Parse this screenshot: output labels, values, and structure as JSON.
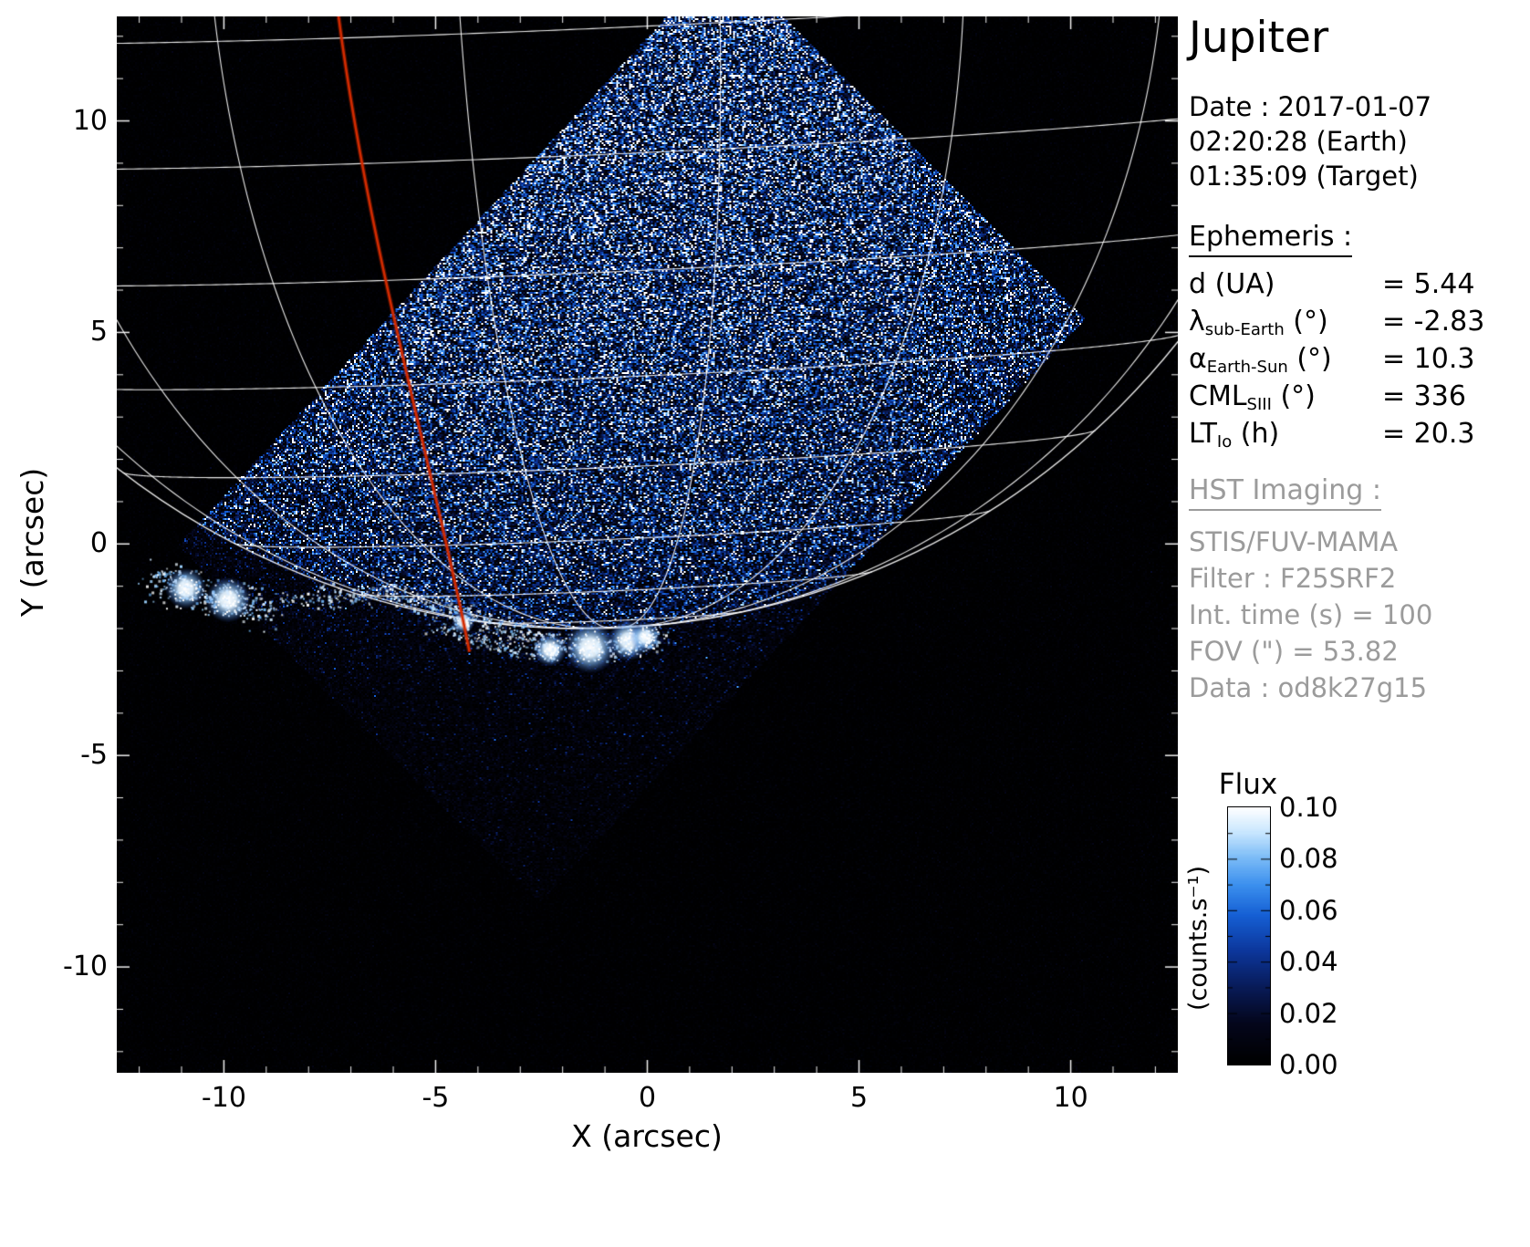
{
  "title": "Jupiter",
  "info_panel": {
    "date_lines": [
      "Date : 2017-01-07",
      "02:20:28 (Earth)",
      "01:35:09 (Target)"
    ],
    "ephemeris": {
      "heading": "Ephemeris :",
      "rows": [
        {
          "pre": "d (UA)",
          "sub": "",
          "post": "",
          "value": "= 5.44"
        },
        {
          "pre": "λ",
          "sub": "sub-Earth",
          "post": " (°)",
          "value": "= -2.83"
        },
        {
          "pre": "α",
          "sub": "Earth-Sun",
          "post": " (°)",
          "value": "= 10.3"
        },
        {
          "pre": "CML",
          "sub": "SIII",
          "post": " (°)",
          "value": "= 336"
        },
        {
          "pre": "LT",
          "sub": "Io",
          "post": " (h)",
          "value": "= 20.3"
        }
      ]
    },
    "hst": {
      "heading": "HST Imaging :",
      "lines": [
        "STIS/FUV-MAMA",
        "Filter : F25SRF2",
        "Int. time (s) = 100",
        "FOV (\") = 53.82",
        "Data : od8k27g15"
      ],
      "text_color": "#9b9b9b"
    }
  },
  "chart_data": {
    "type": "heatmap",
    "title": "Jupiter",
    "xlabel": "X (arcsec)",
    "ylabel": "Y (arcsec)",
    "xlim": [
      -12.53,
      12.53
    ],
    "ylim": [
      -12.5,
      12.47
    ],
    "xticks": [
      -10,
      -5,
      0,
      5,
      10
    ],
    "yticks": [
      10,
      5,
      0,
      -5,
      -10
    ],
    "minor_tick_step": 1,
    "grid": false,
    "colorbar": {
      "title": "Flux",
      "unit": "(counts.s⁻¹)",
      "range": [
        0.0,
        0.1
      ],
      "ticks": [
        0.0,
        0.02,
        0.04,
        0.06,
        0.08,
        0.1
      ],
      "colormap": [
        [
          0,
          "#000000"
        ],
        [
          0.16,
          "#04061c"
        ],
        [
          0.3,
          "#081b58"
        ],
        [
          0.44,
          "#0c369b"
        ],
        [
          0.58,
          "#155fd4"
        ],
        [
          0.7,
          "#3c90ee"
        ],
        [
          0.81,
          "#7fbef7"
        ],
        [
          0.9,
          "#c6e5fe"
        ],
        [
          1,
          "#ffffff"
        ]
      ]
    },
    "detector": {
      "shape": "rotated-square-fov",
      "vertices_arcsec": [
        [
          1.8,
          13.9
        ],
        [
          10.36,
          5.31
        ],
        [
          -2.53,
          -8.48
        ],
        [
          -11.09,
          -0.03
        ]
      ]
    },
    "planet_disk": {
      "center": [
        -1.5,
        15.9
      ],
      "radius": 17.9,
      "axis": [
        0.0436,
        -0.999,
        -0.035
      ],
      "lat_circles_deg": [
        10,
        20,
        30,
        40,
        50,
        60,
        70,
        80,
        85
      ],
      "meridian_step_deg": 20,
      "line_color": "#ffffff"
    },
    "io_footprint_path": {
      "color": "#d42b00",
      "bezier": [
        [
          -7.3,
          12.53
        ],
        [
          -6.55,
          6.8
        ],
        [
          -5.05,
          1.8
        ],
        [
          -4.2,
          -2.55
        ]
      ]
    },
    "aurora": {
      "arcs": [
        {
          "pts": [
            [
              -6.5,
              -1.0
            ],
            [
              -5.7,
              -1.2
            ],
            [
              -4.9,
              -1.45
            ],
            [
              -4.1,
              -1.75
            ],
            [
              -3.3,
              -2.05
            ],
            [
              -2.5,
              -2.3
            ],
            [
              -1.7,
              -2.45
            ],
            [
              -0.9,
              -2.5
            ],
            [
              -0.2,
              -2.35
            ],
            [
              0.35,
              -2.15
            ]
          ],
          "width": 0.14,
          "density": 2.2
        },
        {
          "pts": [
            [
              -11.7,
              -0.9
            ],
            [
              -11.1,
              -1.0
            ],
            [
              -10.5,
              -1.15
            ],
            [
              -9.9,
              -1.3
            ],
            [
              -9.4,
              -1.45
            ],
            [
              -8.95,
              -1.6
            ]
          ],
          "width": 0.22,
          "density": 4
        },
        {
          "pts": [
            [
              -5.1,
              -1.9
            ],
            [
              -4.3,
              -2.15
            ],
            [
              -3.5,
              -2.4
            ],
            [
              -2.8,
              -2.55
            ],
            [
              -2.2,
              -2.65
            ]
          ],
          "width": 0.1,
          "density": 1.2
        },
        {
          "pts": [
            [
              -7.8,
              -1.1
            ],
            [
              -7.1,
              -1.2
            ],
            [
              -6.5,
              -1.3
            ]
          ],
          "width": 0.1,
          "density": 0.9
        },
        {
          "pts": [
            [
              -8.7,
              -1.25
            ],
            [
              -7.9,
              -1.32
            ],
            [
              -7.2,
              -1.35
            ]
          ],
          "width": 0.09,
          "density": 0.6
        }
      ],
      "blobs": [
        [
          -1.35,
          -2.45,
          0.34
        ],
        [
          -0.45,
          -2.28,
          0.27
        ],
        [
          -2.3,
          -2.5,
          0.22
        ],
        [
          -9.9,
          -1.32,
          0.3
        ],
        [
          -10.9,
          -1.05,
          0.27
        ],
        [
          -0.05,
          -2.2,
          0.2
        ],
        [
          -4.35,
          -1.85,
          0.15
        ]
      ]
    }
  }
}
